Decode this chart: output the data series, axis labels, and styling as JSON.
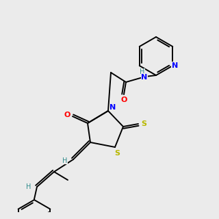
{
  "background_color": "#ebebeb",
  "colors": {
    "C": "#000000",
    "N": "#0000ff",
    "O": "#ff0000",
    "S": "#b8b800",
    "H": "#2e8b8b"
  },
  "lw": 1.4,
  "dbl_sep": 2.8
}
